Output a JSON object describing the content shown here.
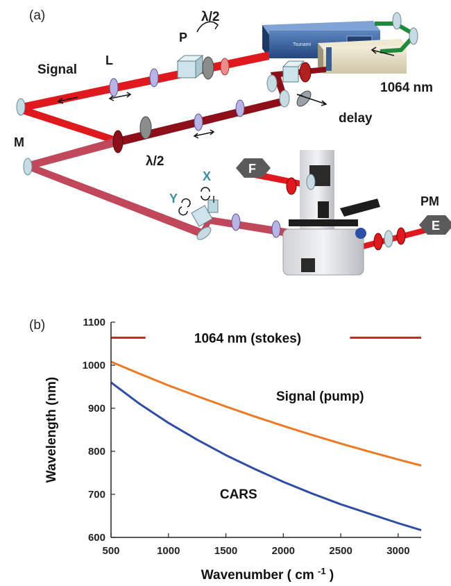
{
  "panel_a": {
    "label": "(a)",
    "labels": {
      "signal": "Signal",
      "L": "L",
      "P": "P",
      "half_wave_top": "λ/2",
      "half_wave_mid": "λ/2",
      "M": "M",
      "nm1064": "1064 nm",
      "delay": "delay",
      "X": "X",
      "Y": "Y",
      "F": "F",
      "PM": "PM",
      "E": "E"
    },
    "colors": {
      "bright_beam": "#e0191e",
      "dark_beam": "#8c0f1a",
      "mixed_beam": "#c0485a",
      "fiber": "#1e8a3a",
      "scan_axis": "#3a8fa0",
      "laser_body": "#2f5f9e"
    }
  },
  "panel_b": {
    "label": "(b)",
    "chart_data": {
      "type": "line",
      "title": "",
      "xlabel": "Wavenumber ( cm",
      "xlabel_sup": "-1",
      "xlabel_end": ")",
      "ylabel": "Wavelength (nm)",
      "xlim": [
        500,
        3200
      ],
      "ylim": [
        600,
        1100
      ],
      "xticks": [
        500,
        1000,
        1500,
        2000,
        2500,
        3000
      ],
      "yticks": [
        600,
        700,
        800,
        900,
        1000,
        1100
      ],
      "grid": false,
      "series": [
        {
          "name": "1064 nm (stokes)",
          "color": "#e0191e",
          "x": [
            500,
            800,
            1000,
            1500,
            2000,
            2500,
            3000,
            3200
          ],
          "y": [
            1064,
            1064,
            1064,
            1064,
            1064,
            1064,
            1064,
            1064
          ]
        },
        {
          "name": "Signal (pump)",
          "color": "#f07820",
          "x": [
            500,
            750,
            1000,
            1250,
            1500,
            1750,
            2000,
            2250,
            2500,
            2750,
            3000,
            3200
          ],
          "y": [
            1008,
            980,
            953,
            928,
            904,
            881,
            859,
            838,
            818,
            799,
            781,
            767
          ]
        },
        {
          "name": "CARS",
          "color": "#2e4da6",
          "x": [
            500,
            750,
            1000,
            1250,
            1500,
            1750,
            2000,
            2250,
            2500,
            2750,
            3000,
            3200
          ],
          "y": [
            960,
            910,
            866,
            827,
            791,
            759,
            729,
            702,
            677,
            655,
            633,
            617
          ]
        }
      ]
    }
  }
}
